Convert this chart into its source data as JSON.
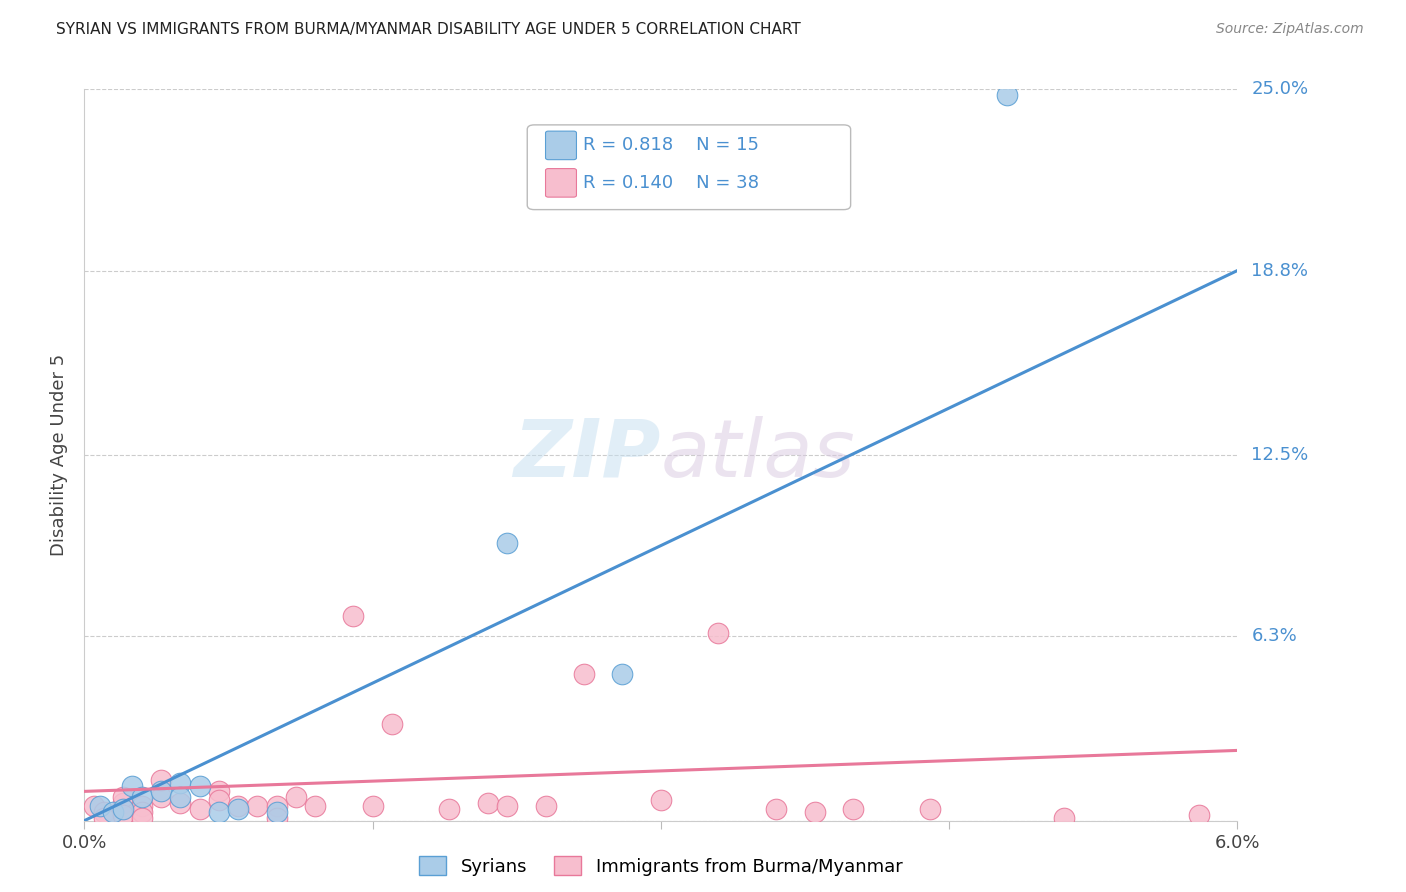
{
  "title": "SYRIAN VS IMMIGRANTS FROM BURMA/MYANMAR DISABILITY AGE UNDER 5 CORRELATION CHART",
  "source": "Source: ZipAtlas.com",
  "ylabel": "Disability Age Under 5",
  "xlim": [
    0.0,
    0.06
  ],
  "ylim": [
    0.0,
    0.25
  ],
  "ytick_vals": [
    0.0,
    0.063,
    0.125,
    0.188,
    0.25
  ],
  "ytick_labels": [
    "",
    "6.3%",
    "12.5%",
    "18.8%",
    "25.0%"
  ],
  "blue_R": "0.818",
  "blue_N": "15",
  "pink_R": "0.140",
  "pink_N": "38",
  "legend_label_blue": "Syrians",
  "legend_label_pink": "Immigrants from Burma/Myanmar",
  "blue_color": "#aacce8",
  "pink_color": "#f7bece",
  "blue_edge_color": "#5a9fd4",
  "pink_edge_color": "#e8789a",
  "blue_line_color": "#4a90d0",
  "pink_line_color": "#e8789a",
  "label_color": "#4a90d0",
  "watermark_color": "#d0e8f5",
  "blue_points_x": [
    0.0008,
    0.0015,
    0.002,
    0.0025,
    0.003,
    0.004,
    0.005,
    0.005,
    0.006,
    0.007,
    0.008,
    0.01,
    0.022,
    0.028,
    0.048
  ],
  "blue_points_y": [
    0.005,
    0.003,
    0.004,
    0.012,
    0.008,
    0.01,
    0.013,
    0.008,
    0.012,
    0.003,
    0.004,
    0.003,
    0.095,
    0.05,
    0.248
  ],
  "pink_points_x": [
    0.0005,
    0.001,
    0.001,
    0.002,
    0.002,
    0.002,
    0.002,
    0.003,
    0.003,
    0.003,
    0.004,
    0.004,
    0.005,
    0.006,
    0.007,
    0.007,
    0.008,
    0.009,
    0.01,
    0.01,
    0.011,
    0.012,
    0.014,
    0.015,
    0.016,
    0.019,
    0.021,
    0.022,
    0.024,
    0.026,
    0.03,
    0.033,
    0.036,
    0.038,
    0.04,
    0.044,
    0.051,
    0.058
  ],
  "pink_points_y": [
    0.005,
    0.003,
    0.001,
    0.006,
    0.004,
    0.008,
    0.002,
    0.005,
    0.003,
    0.001,
    0.008,
    0.014,
    0.006,
    0.004,
    0.01,
    0.007,
    0.005,
    0.005,
    0.005,
    0.001,
    0.008,
    0.005,
    0.07,
    0.005,
    0.033,
    0.004,
    0.006,
    0.005,
    0.005,
    0.05,
    0.007,
    0.064,
    0.004,
    0.003,
    0.004,
    0.004,
    0.001,
    0.002
  ],
  "blue_trend_x0": 0.0,
  "blue_trend_y0": 0.0,
  "blue_trend_x1": 0.06,
  "blue_trend_y1": 0.188,
  "pink_trend_x0": 0.0,
  "pink_trend_y0": 0.01,
  "pink_trend_x1": 0.06,
  "pink_trend_y1": 0.024
}
